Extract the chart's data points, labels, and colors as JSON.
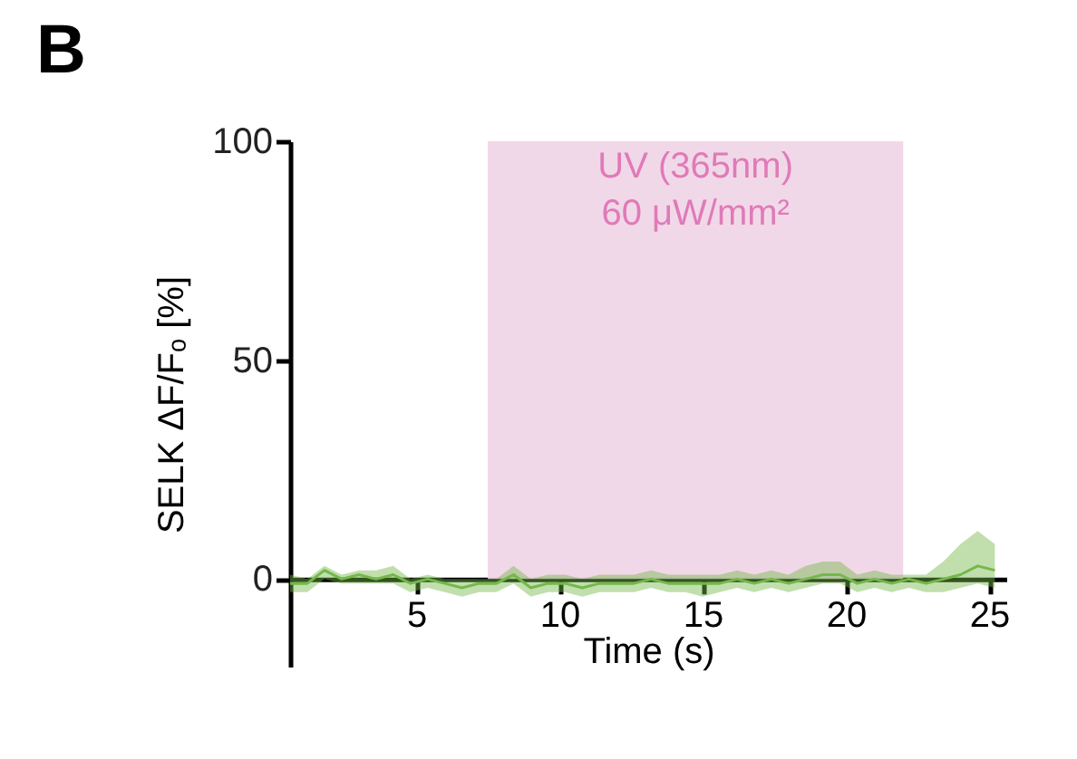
{
  "chart_data": {
    "type": "line",
    "title": "B",
    "xlabel": "Time (s)",
    "ylabel": "SELK ΔF/Fₒ [%]",
    "xlim": [
      0.6,
      25.6
    ],
    "ylim": [
      -20,
      100
    ],
    "xticks": [
      5,
      10,
      15,
      20,
      25
    ],
    "yticks": [
      0,
      50,
      100
    ],
    "grid": false,
    "marker": "none",
    "line_style": "solid",
    "bands": [
      {
        "axis": "x",
        "from": 7.5,
        "to": 22,
        "label": "UV (365nm)\n60 μW/mm²",
        "color": "#f0d4e6"
      }
    ],
    "series": [
      {
        "color": "#74b84a",
        "x": [
          0.6,
          1.2,
          1.8,
          2.4,
          3.0,
          3.6,
          4.2,
          4.8,
          5.4,
          6.0,
          6.6,
          7.2,
          7.8,
          8.4,
          9.0,
          9.6,
          10.2,
          10.8,
          11.4,
          12.0,
          12.6,
          13.2,
          13.8,
          14.4,
          15.0,
          15.6,
          16.2,
          16.8,
          17.4,
          18.0,
          18.6,
          19.2,
          19.8,
          20.4,
          21.0,
          21.6,
          22.2,
          22.8,
          23.4,
          24.0,
          24.6,
          25.2
        ],
        "values": [
          -1,
          -1,
          2,
          0,
          1,
          0,
          1,
          -1,
          0,
          -1,
          -2,
          -1,
          -1,
          1,
          -2,
          -1,
          -1,
          -2,
          -1,
          -1,
          -1,
          0,
          -1,
          -1,
          -1,
          -1,
          0,
          -1,
          0,
          -1,
          0,
          1,
          1,
          -1,
          0,
          -1,
          0,
          -1,
          0,
          1,
          3,
          2
        ],
        "lower": [
          -3,
          -3,
          0,
          -1,
          -1,
          -1,
          -1,
          -3,
          -2,
          -3,
          -4,
          -3,
          -3,
          -1,
          -4,
          -3,
          -3,
          -4,
          -3,
          -3,
          -3,
          -2,
          -3,
          -3,
          -4,
          -3,
          -2,
          -3,
          -2,
          -3,
          -2,
          -1,
          -1,
          -3,
          -2,
          -3,
          -2,
          -3,
          -3,
          -2,
          -1,
          -2
        ],
        "upper": [
          1,
          0,
          3,
          1,
          2,
          2,
          3,
          0,
          1,
          0,
          0,
          0,
          0,
          3,
          0,
          1,
          1,
          0,
          1,
          1,
          1,
          2,
          1,
          1,
          1,
          1,
          2,
          1,
          2,
          1,
          3,
          4,
          4,
          1,
          2,
          1,
          1,
          1,
          4,
          8,
          11,
          8
        ]
      }
    ]
  }
}
